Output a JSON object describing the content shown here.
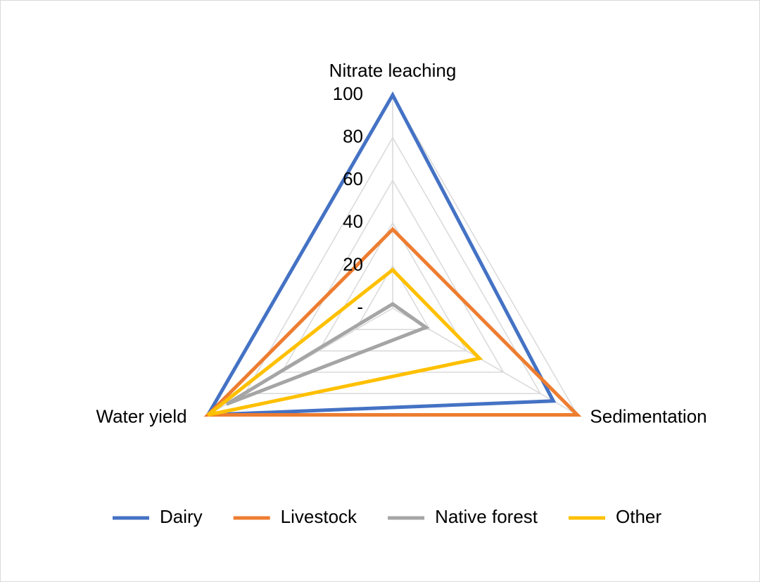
{
  "chart_data": {
    "type": "radar",
    "categories": [
      "Nitrate leaching",
      "Sedimentation",
      "Water yield"
    ],
    "series": [
      {
        "name": "Dairy",
        "color": "#4472c4",
        "values": [
          100,
          87,
          100
        ]
      },
      {
        "name": "Livestock",
        "color": "#ed7d31",
        "values": [
          37,
          100,
          100
        ]
      },
      {
        "name": "Native forest",
        "color": "#a5a5a5",
        "values": [
          2,
          18,
          90
        ]
      },
      {
        "name": "Other",
        "color": "#ffc000",
        "values": [
          18,
          47,
          100
        ]
      }
    ],
    "ylim": [
      0,
      100
    ],
    "yticks": [
      {
        "value": 0,
        "label": "-"
      },
      20,
      40,
      60,
      80,
      100
    ],
    "grid": true,
    "legend": "bottom"
  }
}
